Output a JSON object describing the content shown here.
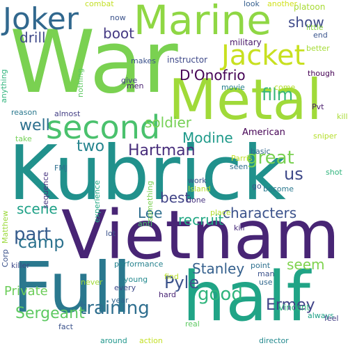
{
  "words": [
    {
      "text": "War",
      "color": "#7ad151"
    },
    {
      "text": "Kubrick",
      "color": "#21918c"
    },
    {
      "text": "Vietnam",
      "color": "#482575"
    },
    {
      "text": "Metal",
      "color": "#a0da39"
    },
    {
      "text": "Full",
      "color": "#2a788e"
    },
    {
      "text": "half",
      "color": "#20a486"
    },
    {
      "text": "Marine",
      "color": "#8fd744"
    },
    {
      "text": "Jacket",
      "color": "#c8e020"
    },
    {
      "text": "Joker",
      "color": "#31688e"
    },
    {
      "text": "second",
      "color": "#4ac16d"
    },
    {
      "text": "D'Onofrio",
      "color": "#440154"
    },
    {
      "text": "film",
      "color": "#35b779"
    },
    {
      "text": "training",
      "color": "#2e6e8e"
    },
    {
      "text": "Sergeant",
      "color": "#5ec962"
    },
    {
      "text": "Hartman",
      "color": "#472d7b"
    },
    {
      "text": "Ermey",
      "color": "#404387"
    },
    {
      "text": "great",
      "color": "#7ad151"
    },
    {
      "text": "part",
      "color": "#365c8d"
    },
    {
      "text": "good",
      "color": "#2fb47c"
    },
    {
      "text": "Pyle",
      "color": "#3b528b"
    },
    {
      "text": "Modine",
      "color": "#1f9a8a"
    },
    {
      "text": "two",
      "color": "#25848e"
    },
    {
      "text": "us",
      "color": "#3e4989"
    },
    {
      "text": "camp",
      "color": "#2c728e"
    },
    {
      "text": "characters",
      "color": "#3b528b"
    },
    {
      "text": "well",
      "color": "#2d708e"
    },
    {
      "text": "show",
      "color": "#3e4989"
    },
    {
      "text": "drill",
      "color": "#3e4989"
    },
    {
      "text": "boot",
      "color": "#443983"
    },
    {
      "text": "soldier",
      "color": "#75d054"
    },
    {
      "text": "scene",
      "color": "#1fa187"
    },
    {
      "text": "best",
      "color": "#414487"
    },
    {
      "text": "Lee",
      "color": "#2e6e8e"
    },
    {
      "text": "Stanley",
      "color": "#35608d"
    },
    {
      "text": "recruit",
      "color": "#22a884"
    },
    {
      "text": "seem",
      "color": "#7fd34e"
    },
    {
      "text": "Private",
      "color": "#6ccd5a"
    },
    {
      "text": "American",
      "color": "#440154"
    },
    {
      "text": "instructor",
      "color": "#3e4989"
    },
    {
      "text": "military",
      "color": "#481668"
    },
    {
      "text": "platoon",
      "color": "#a8db34"
    },
    {
      "text": "another",
      "color": "#d0e11c"
    },
    {
      "text": "end",
      "color": "#3a548c"
    },
    {
      "text": "little",
      "color": "#8fd744"
    },
    {
      "text": "better",
      "color": "#a5db36"
    },
    {
      "text": "though",
      "color": "#440154"
    },
    {
      "text": "killing",
      "color": "#a8db34"
    },
    {
      "text": "Pvt",
      "color": "#481a6c"
    },
    {
      "text": "sniper",
      "color": "#b5de2b"
    },
    {
      "text": "shot",
      "color": "#2fb47c"
    },
    {
      "text": "basic",
      "color": "#31688e"
    },
    {
      "text": "Parris",
      "color": "#c2df23"
    },
    {
      "text": "seen",
      "color": "#2e6e8e"
    },
    {
      "text": "become",
      "color": "#2a788e"
    },
    {
      "text": "go",
      "color": "#3b528b"
    },
    {
      "text": "work",
      "color": "#3b528b"
    },
    {
      "text": "Island",
      "color": "#b5de2b"
    },
    {
      "text": "done",
      "color": "#46337f"
    },
    {
      "text": "place",
      "color": "#b5de2b"
    },
    {
      "text": "kill",
      "color": "#472a7a"
    },
    {
      "text": "lot",
      "color": "#3b528b"
    },
    {
      "text": "anti",
      "color": "#4ac16d"
    },
    {
      "text": "performance",
      "color": "#26828e"
    },
    {
      "text": "young",
      "color": "#23898e"
    },
    {
      "text": "never",
      "color": "#a0da39"
    },
    {
      "text": "every",
      "color": "#3e4989"
    },
    {
      "text": "year",
      "color": "#32658e"
    },
    {
      "text": "find",
      "color": "#b8de29"
    },
    {
      "text": "point",
      "color": "#2d708e"
    },
    {
      "text": "man",
      "color": "#3b528b"
    },
    {
      "text": "use",
      "color": "#31688e"
    },
    {
      "text": "Vincent",
      "color": "#2fb47c"
    },
    {
      "text": "always",
      "color": "#1fa187"
    },
    {
      "text": "real",
      "color": "#5ec962"
    },
    {
      "text": "hard",
      "color": "#482475"
    },
    {
      "text": "fact",
      "color": "#3b528b"
    },
    {
      "text": "feel",
      "color": "#433e85"
    },
    {
      "text": "around",
      "color": "#1f968b"
    },
    {
      "text": "action",
      "color": "#c2df23"
    },
    {
      "text": "director",
      "color": "#23898e"
    },
    {
      "text": "killer",
      "color": "#3e4989"
    },
    {
      "text": "Corp",
      "color": "#3b528b"
    },
    {
      "text": "Matthew",
      "color": "#9bd93c"
    },
    {
      "text": "FMJ",
      "color": "#2e6e8e"
    },
    {
      "text": "sequence",
      "color": "#46337f"
    },
    {
      "text": "experience",
      "color": "#22a884"
    },
    {
      "text": "something",
      "color": "#7ad151"
    },
    {
      "text": "reason",
      "color": "#2a788e"
    },
    {
      "text": "almost",
      "color": "#433e85"
    },
    {
      "text": "take",
      "color": "#73d056"
    },
    {
      "text": "anything",
      "color": "#2fb47c"
    },
    {
      "text": "nothing",
      "color": "#5ec962"
    },
    {
      "text": "give",
      "color": "#433e85"
    },
    {
      "text": "men",
      "color": "#481f70"
    },
    {
      "text": "makes",
      "color": "#3b528b"
    },
    {
      "text": "combat",
      "color": "#c2df23"
    },
    {
      "text": "now",
      "color": "#3b528b"
    },
    {
      "text": "look",
      "color": "#355f8d"
    },
    {
      "text": "movie",
      "color": "#277f8e"
    },
    {
      "text": "come",
      "color": "#b5de2b"
    }
  ]
}
